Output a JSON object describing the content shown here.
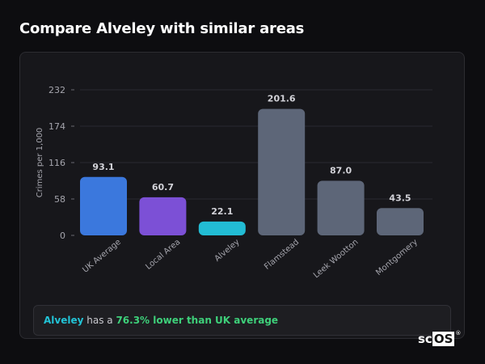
{
  "page": {
    "title": "Compare Alveley with similar areas"
  },
  "summary": {
    "area": "Alveley",
    "text_before": " has a ",
    "stat": "76.3% lower than UK average"
  },
  "brand": {
    "sc": "sc",
    "os": "OS",
    "reg": "®"
  },
  "chart_data": {
    "type": "bar",
    "title": "",
    "xlabel": "",
    "ylabel": "Crimes per 1,000",
    "ylim": [
      0,
      232
    ],
    "yticks": [
      0,
      58,
      116,
      174,
      232
    ],
    "grid": true,
    "categories": [
      "UK Average",
      "Local Area",
      "Alveley",
      "Flamstead",
      "Leek Wootton",
      "Montgomery"
    ],
    "values": [
      93.1,
      60.7,
      22.1,
      201.6,
      87.0,
      43.5
    ],
    "value_labels": [
      "93.1",
      "60.7",
      "22.1",
      "201.6",
      "87.0",
      "43.5"
    ],
    "colors": [
      "#3b78dd",
      "#7c50d6",
      "#22bcd4",
      "#5d6678",
      "#5d6678",
      "#5d6678"
    ]
  }
}
